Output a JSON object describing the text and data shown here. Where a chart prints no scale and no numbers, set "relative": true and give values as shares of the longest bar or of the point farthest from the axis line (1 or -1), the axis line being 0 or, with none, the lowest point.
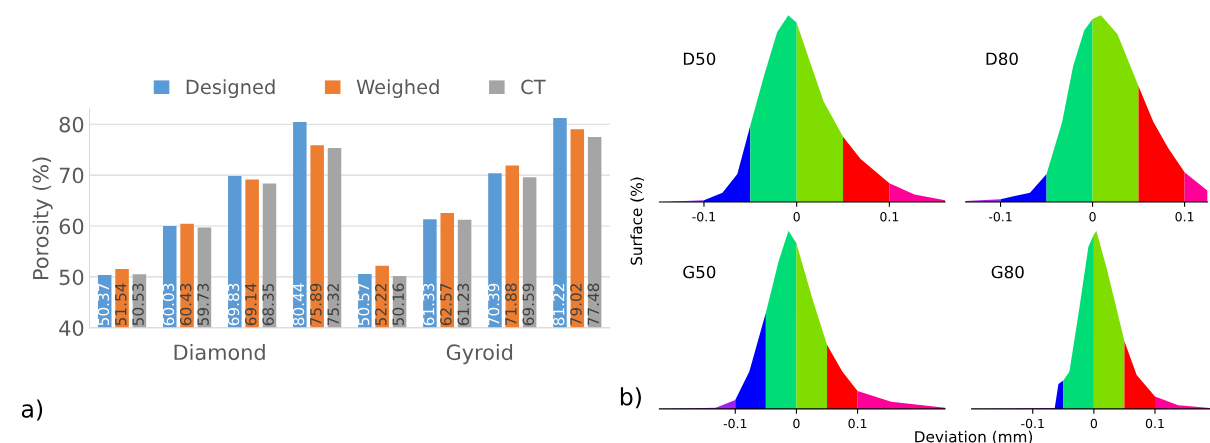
{
  "chart_data": [
    {
      "type": "bar",
      "ylabel": "Porosity (%)",
      "categories": [
        null,
        null,
        null,
        null,
        null,
        null,
        null,
        null
      ],
      "series": [
        {
          "name": "Designed",
          "color": "#5b9bd5",
          "values": [
            50.37,
            60.03,
            69.83,
            80.44,
            50.57,
            61.33,
            70.39,
            81.22
          ]
        },
        {
          "name": "Weighed",
          "color": "#ed7d31",
          "values": [
            51.54,
            60.43,
            69.14,
            75.89,
            52.22,
            62.57,
            71.88,
            79.02
          ]
        },
        {
          "name": "CT",
          "color": "#a5a5a5",
          "values": [
            50.53,
            59.73,
            68.35,
            75.32,
            50.16,
            61.23,
            69.59,
            77.48
          ]
        }
      ],
      "ylim": [
        40,
        83
      ],
      "yticks": [
        40,
        50,
        60,
        70,
        80
      ],
      "grid": "y",
      "legend": "top",
      "data_labels": true,
      "annotations": [
        "Diamond",
        "Gyroid",
        "a)"
      ]
    },
    {
      "type": "area",
      "relative": true,
      "ylabel": "Surface (%)",
      "annotations": [
        "D50"
      ],
      "xlim": [
        -0.148,
        0.16
      ],
      "xticks": [
        -0.1,
        0,
        0.1
      ],
      "series": [
        {
          "color": "#a020f0",
          "x": [
            -0.148,
            -0.12,
            -0.1
          ],
          "values": [
            0,
            0.005,
            0.01
          ]
        },
        {
          "color": "#0000ff",
          "x": [
            -0.1,
            -0.08,
            -0.064,
            -0.05
          ],
          "values": [
            0.01,
            0.05,
            0.15,
            0.41
          ]
        },
        {
          "color": "#00dd77",
          "x": [
            -0.05,
            -0.035,
            -0.021,
            -0.009,
            0
          ],
          "values": [
            0.41,
            0.68,
            0.91,
            1.0,
            0.96
          ]
        },
        {
          "color": "#80dd00",
          "x": [
            0,
            0.013,
            0.029,
            0.05
          ],
          "values": [
            0.96,
            0.77,
            0.54,
            0.35
          ]
        },
        {
          "color": "#ff0000",
          "x": [
            0.05,
            0.069,
            0.1
          ],
          "values": [
            0.35,
            0.23,
            0.1
          ]
        },
        {
          "color": "#ff0099",
          "x": [
            0.1,
            0.127,
            0.16
          ],
          "values": [
            0.1,
            0.04,
            0.01
          ]
        }
      ]
    },
    {
      "type": "area",
      "relative": true,
      "annotations": [
        "D80"
      ],
      "xlim": [
        -0.138,
        0.125
      ],
      "xticks": [
        -0.1,
        0,
        0.1
      ],
      "series": [
        {
          "color": "#a020f0",
          "x": [
            -0.138,
            -0.1
          ],
          "values": [
            0.005,
            0.015
          ]
        },
        {
          "color": "#0000ff",
          "x": [
            -0.1,
            -0.068,
            -0.05
          ],
          "values": [
            0.015,
            0.05,
            0.15
          ]
        },
        {
          "color": "#00dd77",
          "x": [
            -0.05,
            -0.033,
            -0.021,
            -0.009,
            0
          ],
          "values": [
            0.15,
            0.43,
            0.73,
            0.92,
            0.98
          ]
        },
        {
          "color": "#80dd00",
          "x": [
            0,
            0.009,
            0.027,
            0.05
          ],
          "values": [
            0.98,
            1.0,
            0.9,
            0.62
          ]
        },
        {
          "color": "#ff0000",
          "x": [
            0.05,
            0.066,
            0.082,
            0.1
          ],
          "values": [
            0.62,
            0.43,
            0.29,
            0.16
          ]
        },
        {
          "color": "#ff0099",
          "x": [
            0.1,
            0.125
          ],
          "values": [
            0.16,
            0.06
          ]
        }
      ]
    },
    {
      "type": "area",
      "relative": true,
      "xlabel": "Deviation (mm)",
      "annotations": [
        "G50",
        "b)"
      ],
      "xlim": [
        -0.224,
        0.243
      ],
      "xticks": [
        -0.1,
        0,
        0.1
      ],
      "series": [
        {
          "color": "#a020f0",
          "x": [
            -0.224,
            -0.132,
            -0.1
          ],
          "values": [
            0,
            0.006,
            0.05
          ]
        },
        {
          "color": "#0000ff",
          "x": [
            -0.1,
            -0.077,
            -0.05
          ],
          "values": [
            0.05,
            0.21,
            0.54
          ]
        },
        {
          "color": "#00dd77",
          "x": [
            -0.05,
            -0.029,
            -0.013,
            0
          ],
          "values": [
            0.54,
            0.83,
            1.0,
            0.93
          ]
        },
        {
          "color": "#80dd00",
          "x": [
            0,
            0.026,
            0.05
          ],
          "values": [
            0.93,
            0.62,
            0.36
          ]
        },
        {
          "color": "#ff0000",
          "x": [
            0.05,
            0.075,
            0.1
          ],
          "values": [
            0.36,
            0.21,
            0.1
          ]
        },
        {
          "color": "#ff0099",
          "x": [
            0.1,
            0.155,
            0.243
          ],
          "values": [
            0.1,
            0.04,
            0.006
          ]
        }
      ]
    },
    {
      "type": "area",
      "relative": true,
      "annotations": [
        "G80"
      ],
      "xlim": [
        -0.2,
        0.19
      ],
      "xticks": [
        -0.1,
        0,
        0.1
      ],
      "series": [
        {
          "color": "#a020f0",
          "x": [
            -0.2,
            -0.064
          ],
          "values": [
            0,
            0.005
          ]
        },
        {
          "color": "#0000ff",
          "x": [
            -0.064,
            -0.058,
            -0.05
          ],
          "values": [
            0.005,
            0.14,
            0.16
          ]
        },
        {
          "color": "#00dd77",
          "x": [
            -0.05,
            -0.04,
            -0.024,
            -0.009,
            0
          ],
          "values": [
            0.16,
            0.21,
            0.56,
            0.91,
            0.98
          ]
        },
        {
          "color": "#80dd00",
          "x": [
            0,
            0.004,
            0.021,
            0.05
          ],
          "values": [
            0.98,
            1.0,
            0.79,
            0.38
          ]
        },
        {
          "color": "#ff0000",
          "x": [
            0.05,
            0.07,
            0.1
          ],
          "values": [
            0.38,
            0.19,
            0.07
          ]
        },
        {
          "color": "#ff0099",
          "x": [
            0.1,
            0.138,
            0.19
          ],
          "values": [
            0.07,
            0.02,
            0.005
          ]
        }
      ]
    }
  ]
}
